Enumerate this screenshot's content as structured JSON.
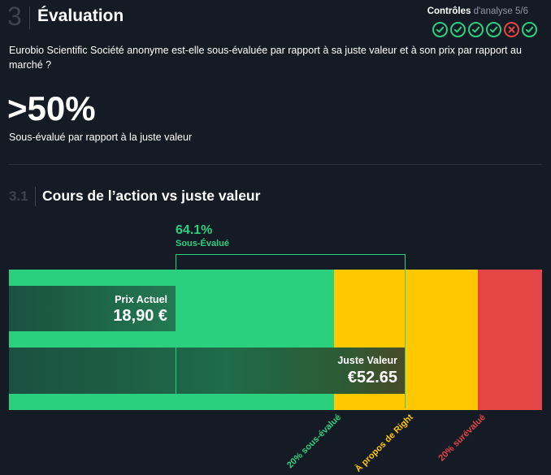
{
  "header": {
    "section_number": "3",
    "title": "Évaluation",
    "checks_label_strong": "Contrôles",
    "checks_label_muted": "d'analyse 5/6",
    "checks": [
      "pass",
      "pass",
      "pass",
      "pass",
      "fail",
      "pass"
    ]
  },
  "question": "Eurobio Scientific Société anonyme est-elle sous-évaluée par rapport à sa juste valeur et à son prix par rapport au marché ?",
  "headline": {
    "value": ">50%",
    "description": "Sous-évalué par rapport à la juste valeur"
  },
  "subsection": {
    "number": "3.1",
    "title": "Cours de l’action vs juste valeur"
  },
  "price_chart": {
    "discount_percent": "64.1%",
    "discount_label": "Sous-Évalué",
    "current_price_label": "Prix Actuel",
    "current_price_value": "18,90 €",
    "fair_value_label": "Juste Valeur",
    "fair_value_value": "€52.65",
    "zone_labels": {
      "undervalued": "20% sous-évalué",
      "about_right": "À propos de Right",
      "overvalued": "20% surévalué"
    },
    "colors": {
      "undervalued": "#2ad07e",
      "about_right": "#ffc800",
      "overvalued": "#e64545",
      "background": "#151b24"
    }
  }
}
